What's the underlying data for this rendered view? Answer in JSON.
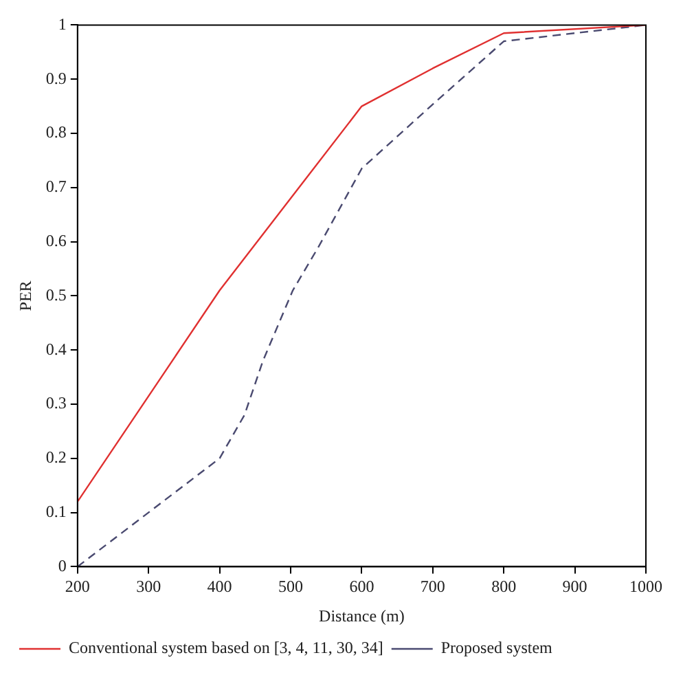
{
  "chart_data": {
    "type": "line",
    "xlabel": "Distance (m)",
    "ylabel": "PER",
    "xlim": [
      200,
      1000
    ],
    "xticks": [
      200,
      300,
      400,
      500,
      600,
      700,
      800,
      900,
      1000
    ],
    "ylim": [
      0,
      1
    ],
    "yticks": [
      0,
      0.1,
      0.2,
      0.3,
      0.4,
      0.5,
      0.6,
      0.7,
      0.8,
      0.9,
      1
    ],
    "grid": false,
    "legend": "bottom",
    "marker": "none",
    "series": [
      {
        "name": "Conventional system based on [3, 4, 11, 30, 34]",
        "color": "#e03030",
        "line_style": "solid",
        "x": [
          200,
          400,
          600,
          700,
          800,
          1000
        ],
        "values": [
          0.12,
          0.51,
          0.85,
          0.92,
          0.985,
          1.0
        ]
      },
      {
        "name": "Proposed system",
        "color": "#4a4a70",
        "line_style": "dashed",
        "x": [
          200,
          400,
          435,
          461,
          503,
          539,
          600,
          697,
          800,
          1000
        ],
        "values": [
          0,
          0.2,
          0.28,
          0.38,
          0.51,
          0.59,
          0.735,
          0.85,
          0.97,
          1.0
        ]
      }
    ]
  }
}
